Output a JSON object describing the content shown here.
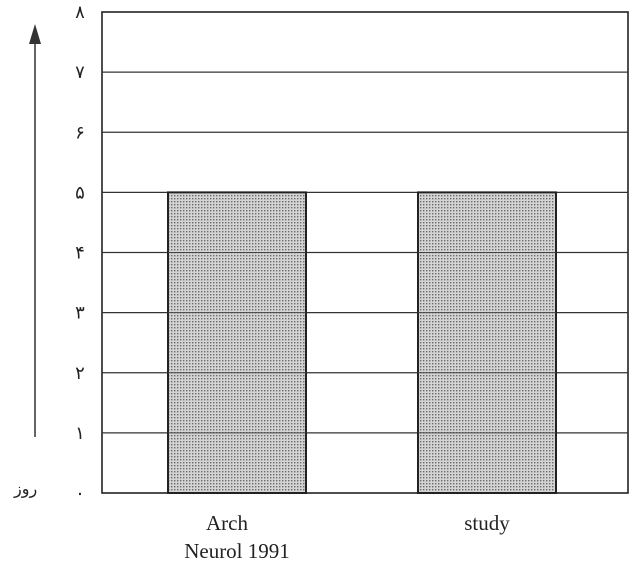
{
  "chart_data": {
    "type": "bar",
    "categories": [
      "Arch\nNeurol 1991",
      "study"
    ],
    "values": [
      5,
      5
    ],
    "y_unit_label": "روز",
    "y_tick_labels": [
      "۰",
      "۱",
      "۲",
      "۳",
      "۴",
      "۵",
      "۶",
      "۷",
      "۸"
    ],
    "ylim": [
      0,
      8
    ],
    "grid": true,
    "bar_fill": "#bdbdbd",
    "title": "",
    "xlabel": "",
    "ylabel": ""
  }
}
